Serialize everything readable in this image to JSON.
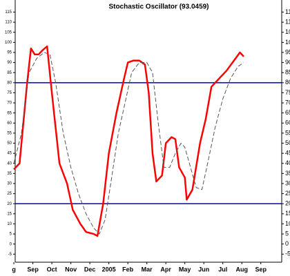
{
  "chart_data": {
    "type": "line",
    "title": "Stochastic Oscillator (93.0459)",
    "xticks": [
      {
        "value": 0,
        "label": "g"
      },
      {
        "value": 1,
        "label": "Sep"
      },
      {
        "value": 2,
        "label": "Oct"
      },
      {
        "value": 3,
        "label": "Nov"
      },
      {
        "value": 4,
        "label": "Dec"
      },
      {
        "value": 5,
        "label": "2005"
      },
      {
        "value": 6,
        "label": "Feb"
      },
      {
        "value": 7,
        "label": "Mar"
      },
      {
        "value": 8,
        "label": "Apr"
      },
      {
        "value": 9,
        "label": "May"
      },
      {
        "value": 10,
        "label": "Jun"
      },
      {
        "value": 11,
        "label": "Jul"
      },
      {
        "value": 12,
        "label": "Aug"
      },
      {
        "value": 13,
        "label": "Sep"
      }
    ],
    "xlim": [
      0.07,
      14.1
    ],
    "ylim": [
      -9,
      121
    ],
    "yticks": [
      -5,
      0,
      5,
      10,
      15,
      20,
      25,
      30,
      35,
      40,
      45,
      50,
      55,
      60,
      65,
      70,
      75,
      80,
      85,
      90,
      95,
      100,
      105,
      110,
      115
    ],
    "hlines": [
      80,
      20
    ],
    "hline_color": "#0000cc",
    "series": [
      {
        "color": "#ff0000",
        "dashed": false,
        "x": [
          0,
          0.3,
          0.7,
          0.9,
          1.1,
          1.3,
          1.5,
          1.75,
          2.0,
          2.4,
          2.8,
          3.1,
          3.5,
          3.8,
          4.2,
          4.4,
          4.7,
          5.0,
          5.4,
          5.8,
          6.0,
          6.3,
          6.6,
          6.9,
          7.1,
          7.3,
          7.5,
          7.8,
          8.0,
          8.3,
          8.5,
          8.7,
          9.0,
          9.1,
          9.4,
          9.8,
          10.1,
          10.4,
          10.8,
          11.2,
          11.9,
          12.1
        ],
        "values": [
          37,
          40,
          80,
          97,
          94,
          94,
          96,
          98,
          75,
          40,
          30,
          17,
          10,
          6,
          5,
          4,
          20,
          45,
          65,
          82,
          90,
          91,
          91,
          89,
          75,
          45,
          31,
          34,
          50,
          53,
          52,
          38,
          33,
          22,
          27,
          50,
          62,
          78,
          82,
          86,
          95,
          93
        ]
      },
      {
        "color": "#555555",
        "dashed": true,
        "x": [
          0,
          0.4,
          0.8,
          1.2,
          1.6,
          1.9,
          2.2,
          2.6,
          3.0,
          3.4,
          3.8,
          4.2,
          4.5,
          4.8,
          5.1,
          5.5,
          5.9,
          6.2,
          6.6,
          7.0,
          7.3,
          7.6,
          7.9,
          8.2,
          8.5,
          8.8,
          9.0,
          9.3,
          9.6,
          9.9,
          10.2,
          10.6,
          11.0,
          11.4,
          11.8,
          12.1
        ],
        "values": [
          40,
          55,
          85,
          92,
          95,
          94,
          80,
          55,
          38,
          25,
          15,
          8,
          5,
          12,
          30,
          55,
          72,
          85,
          90,
          90,
          85,
          60,
          38,
          38,
          45,
          50,
          48,
          38,
          28,
          27,
          40,
          58,
          72,
          82,
          88,
          90
        ]
      }
    ]
  }
}
